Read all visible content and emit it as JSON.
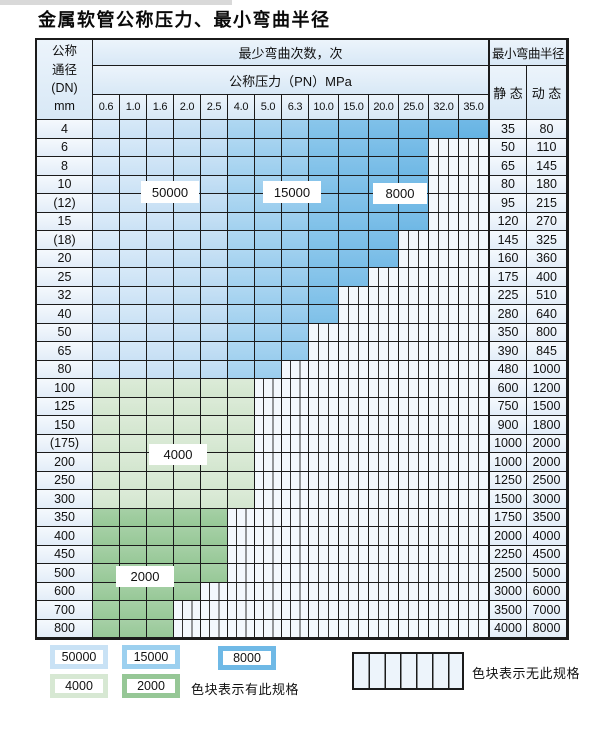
{
  "title": "金属软管公称压力、最小弯曲半径",
  "table": {
    "corner_lines": [
      "公称",
      "通径",
      "(DN)",
      "mm"
    ],
    "bend_cycles_header": "最少弯曲次数，次",
    "pressure_header": "公称压力（PN）MPa",
    "radius_header": "最小弯曲半径",
    "static_label": "静 态",
    "dynamic_label": "动 态",
    "pressure_columns": [
      "0.6",
      "1.0",
      "1.6",
      "2.0",
      "2.5",
      "4.0",
      "5.0",
      "6.3",
      "10.0",
      "15.0",
      "20.0",
      "25.0",
      "32.0",
      "35.0"
    ],
    "rows": [
      {
        "dn": "4",
        "colored": 14,
        "zone": "blue",
        "static": "35",
        "dynamic": "80"
      },
      {
        "dn": "6",
        "colored": 12,
        "zone": "blue",
        "static": "50",
        "dynamic": "110"
      },
      {
        "dn": "8",
        "colored": 12,
        "zone": "blue",
        "static": "65",
        "dynamic": "145"
      },
      {
        "dn": "10",
        "colored": 12,
        "zone": "blue",
        "static": "80",
        "dynamic": "180"
      },
      {
        "dn": "(12)",
        "colored": 12,
        "zone": "blue",
        "static": "95",
        "dynamic": "215"
      },
      {
        "dn": "15",
        "colored": 12,
        "zone": "blue",
        "static": "120",
        "dynamic": "270"
      },
      {
        "dn": "(18)",
        "colored": 11,
        "zone": "blue",
        "static": "145",
        "dynamic": "325"
      },
      {
        "dn": "20",
        "colored": 11,
        "zone": "blue",
        "static": "160",
        "dynamic": "360"
      },
      {
        "dn": "25",
        "colored": 10,
        "zone": "blue",
        "static": "175",
        "dynamic": "400"
      },
      {
        "dn": "32",
        "colored": 9,
        "zone": "blue",
        "static": "225",
        "dynamic": "510"
      },
      {
        "dn": "40",
        "colored": 9,
        "zone": "blue",
        "static": "280",
        "dynamic": "640"
      },
      {
        "dn": "50",
        "colored": 8,
        "zone": "blue",
        "static": "350",
        "dynamic": "800"
      },
      {
        "dn": "65",
        "colored": 8,
        "zone": "blue",
        "static": "390",
        "dynamic": "845"
      },
      {
        "dn": "80",
        "colored": 7,
        "zone": "blue",
        "static": "480",
        "dynamic": "1000"
      },
      {
        "dn": "100",
        "colored": 6,
        "zone": "g4",
        "static": "600",
        "dynamic": "1200"
      },
      {
        "dn": "125",
        "colored": 6,
        "zone": "g4",
        "static": "750",
        "dynamic": "1500"
      },
      {
        "dn": "150",
        "colored": 6,
        "zone": "g4",
        "static": "900",
        "dynamic": "1800"
      },
      {
        "dn": "(175)",
        "colored": 6,
        "zone": "g4",
        "static": "1000",
        "dynamic": "2000"
      },
      {
        "dn": "200",
        "colored": 6,
        "zone": "g4",
        "static": "1000",
        "dynamic": "2000"
      },
      {
        "dn": "250",
        "colored": 6,
        "zone": "g4",
        "static": "1250",
        "dynamic": "2500"
      },
      {
        "dn": "300",
        "colored": 6,
        "zone": "g4",
        "static": "1500",
        "dynamic": "3000"
      },
      {
        "dn": "350",
        "colored": 5,
        "zone": "g2",
        "static": "1750",
        "dynamic": "3500"
      },
      {
        "dn": "400",
        "colored": 5,
        "zone": "g2",
        "static": "2000",
        "dynamic": "4000"
      },
      {
        "dn": "450",
        "colored": 5,
        "zone": "g2",
        "static": "2250",
        "dynamic": "4500"
      },
      {
        "dn": "500",
        "colored": 5,
        "zone": "g2",
        "static": "2500",
        "dynamic": "5000"
      },
      {
        "dn": "600",
        "colored": 4,
        "zone": "g2",
        "static": "3000",
        "dynamic": "6000"
      },
      {
        "dn": "700",
        "colored": 3,
        "zone": "g2",
        "static": "3500",
        "dynamic": "7000"
      },
      {
        "dn": "800",
        "colored": 3,
        "zone": "g2",
        "static": "4000",
        "dynamic": "8000"
      }
    ]
  },
  "zone_labels": [
    "50000",
    "15000",
    "8000",
    "4000",
    "2000"
  ],
  "legend": {
    "items": [
      {
        "value": "50000",
        "color": "#c9e2f5"
      },
      {
        "value": "15000",
        "color": "#9cd0ef"
      },
      {
        "value": "8000",
        "color": "#6fb9e6"
      },
      {
        "value": "4000",
        "color": "#d7e8d3"
      },
      {
        "value": "2000",
        "color": "#96c796"
      }
    ],
    "has_spec_text": "色块表示有此规格",
    "no_spec_text": "色块表示无此规格"
  },
  "colors": {
    "border": "#1b1b1b",
    "zone_blue_light": "#cfe4f6",
    "zone_blue_mid": "#9ccdee",
    "zone_blue_dark": "#74bae6",
    "zone_green_light": "#d7e8d3",
    "zone_green_dark": "#9ccb9c",
    "stripe_bg": "#f3f8fd"
  }
}
